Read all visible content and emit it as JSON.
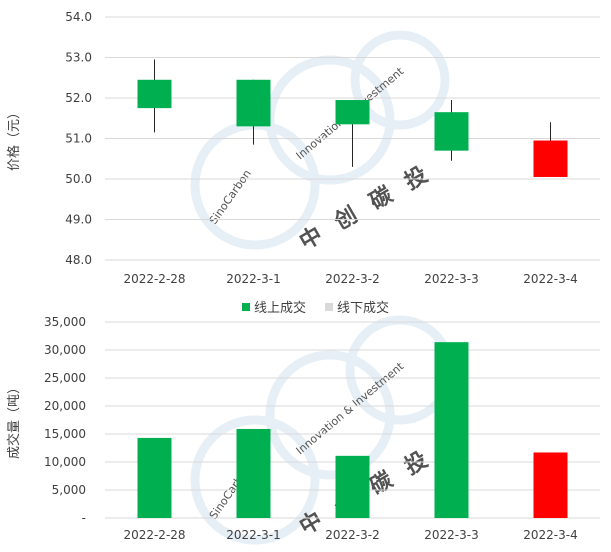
{
  "chart_data": [
    {
      "type": "candlestick",
      "ylabel": "价格（元）",
      "ylim": [
        48.0,
        54.0
      ],
      "yticks": [
        "48.0",
        "49.0",
        "50.0",
        "51.0",
        "52.0",
        "53.0",
        "54.0"
      ],
      "ytick_values": [
        48,
        49,
        50,
        51,
        52,
        53,
        54
      ],
      "categories": [
        "2022-2-28",
        "2022-3-1",
        "2022-3-2",
        "2022-3-3",
        "2022-3-4"
      ],
      "candles": [
        {
          "open": 51.75,
          "close": 52.45,
          "high": 52.95,
          "low": 51.15,
          "color": "#00b050"
        },
        {
          "open": 51.3,
          "close": 52.45,
          "high": 52.45,
          "low": 50.85,
          "color": "#00b050"
        },
        {
          "open": 51.35,
          "close": 51.95,
          "high": 51.95,
          "low": 50.3,
          "color": "#00b050"
        },
        {
          "open": 50.7,
          "close": 51.65,
          "high": 51.95,
          "low": 50.45,
          "color": "#00b050"
        },
        {
          "open": 50.05,
          "close": 50.95,
          "high": 51.4,
          "low": 50.05,
          "color": "#ff0000"
        }
      ]
    },
    {
      "type": "bar",
      "ylabel": "成交量（吨）",
      "ylim": [
        0,
        35000
      ],
      "yticks": [
        "-",
        "5,000",
        "10,000",
        "15,000",
        "20,000",
        "25,000",
        "30,000",
        "35,000"
      ],
      "ytick_values": [
        0,
        5000,
        10000,
        15000,
        20000,
        25000,
        30000,
        35000
      ],
      "categories": [
        "2022-2-28",
        "2022-3-1",
        "2022-3-2",
        "2022-3-3",
        "2022-3-4"
      ],
      "values": [
        14300,
        15900,
        11100,
        31400,
        11700
      ],
      "bar_colors": [
        "#00b050",
        "#00b050",
        "#00b050",
        "#00b050",
        "#ff0000"
      ],
      "legend": [
        {
          "label": "线上成交",
          "color": "#00b050"
        },
        {
          "label": "线下成交",
          "color": "#d9d9d9"
        }
      ]
    }
  ],
  "watermark": {
    "text_en_1": "SinoCarbon",
    "text_en_2": "Innovation & Investment",
    "text_cn": [
      "中",
      "创",
      "碳",
      "投"
    ]
  }
}
